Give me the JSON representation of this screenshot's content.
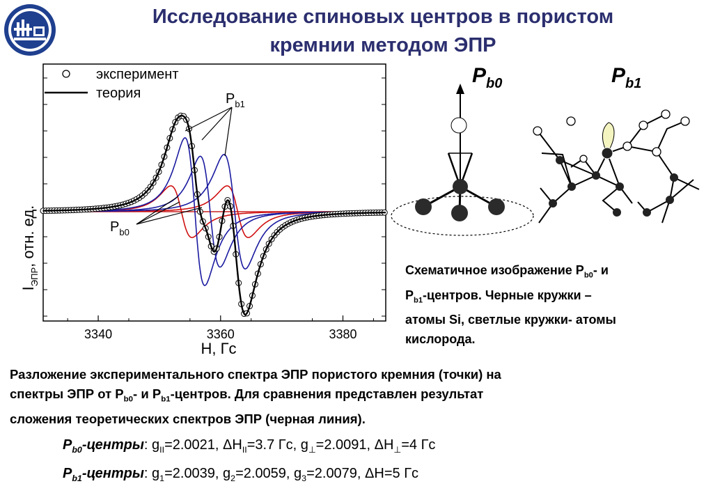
{
  "title": {
    "line1": "Исследование спиновых центров в пористом",
    "line2": "кремнии методом ЭПР"
  },
  "colors": {
    "title": "#2b2e6e",
    "logo": "#1f3f8f",
    "theory": "#000000",
    "pb1_components": "#1a1aa0",
    "pb0_components": "#d01010",
    "baseline": "#cc2222"
  },
  "logo": {
    "icon": "university-logo-icon"
  },
  "chart_data": {
    "type": "line",
    "xlabel": "H, Гс",
    "ylabel_main": "I",
    "ylabel_sub": "ЭПР",
    "ylabel_rest": ", отн. ед.",
    "x_ticks": [
      "3340",
      "3360",
      "3380"
    ],
    "x_tick_values": [
      3340,
      3360,
      3380
    ],
    "xlim": [
      3331,
      3387
    ],
    "ylim": [
      -1.0,
      1.35
    ],
    "legend": {
      "placement": "top-left",
      "experiment": "эксперимент",
      "theory": "теория"
    },
    "annotations": {
      "pb1_main": "P",
      "pb1_sub": "b1",
      "pb0_main": "P",
      "pb0_sub": "b0"
    },
    "series": [
      {
        "name": "эксперимент",
        "style": "open-circles"
      },
      {
        "name": "теория",
        "style": "thick-black-line"
      }
    ],
    "components": {
      "pb1": [
        {
          "center": 3355.8,
          "width": 2.8,
          "amp": 0.8
        },
        {
          "center": 3358.3,
          "width": 2.8,
          "amp": 0.6
        },
        {
          "center": 3362.3,
          "width": 3.0,
          "amp": 0.62
        }
      ],
      "pb0": [
        {
          "center": 3353.6,
          "width": 3.0,
          "amp": 0.28
        },
        {
          "center": 3362.8,
          "width": 3.0,
          "amp": 0.28
        }
      ]
    }
  },
  "scheme": {
    "pb0_label_main": "P",
    "pb0_label_sub": "b0",
    "pb1_label_main": "P",
    "pb1_label_sub": "b1"
  },
  "caption": {
    "l1_a": "Схематичное изображение P",
    "l1_sub": "b0",
    "l1_b": "- и",
    "l2_a": "P",
    "l2_sub": "b1",
    "l2_b": "-центров. Черные кружки –",
    "l3": "атомы Si, светлые кружки- атомы",
    "l4": "кислорода."
  },
  "description": {
    "l1": "Разложение экспериментального спектра ЭПР пористого кремния (точки) на",
    "l2_a": "спектры ЭПР от P",
    "l2_sub1": "b0",
    "l2_b": "- и P",
    "l2_sub2": "b1",
    "l2_c": "-центров. Для сравнения представлен результат",
    "l3": "сложения теоретических спектров ЭПР (черная линия)."
  },
  "params": {
    "pb0_label_main": "P",
    "pb0_label_sub": "b0",
    "pb0_label_rest": "-центры",
    "pb0_values": {
      "g_par_sub": "II",
      "g_par": "=2.0021, ",
      "dh_par_sub": "II",
      "dh_par": "=3.7 Гс, g",
      "g_perp_sub": "⊥",
      "g_perp": "=2.0091, ",
      "dh_perp_sub": "⊥",
      "dh_perp": "=4 Гс"
    },
    "pb1_label_main": "P",
    "pb1_label_sub": "b1",
    "pb1_label_rest": "-центры",
    "pb1_values": {
      "g1_sub": "1",
      "g1": "=2.0039, g",
      "g2_sub": "2",
      "g2": "=2.0059, g",
      "g3_sub": "3",
      "g3": "=2.0079, ",
      "dh": "H=5 Гс"
    }
  }
}
